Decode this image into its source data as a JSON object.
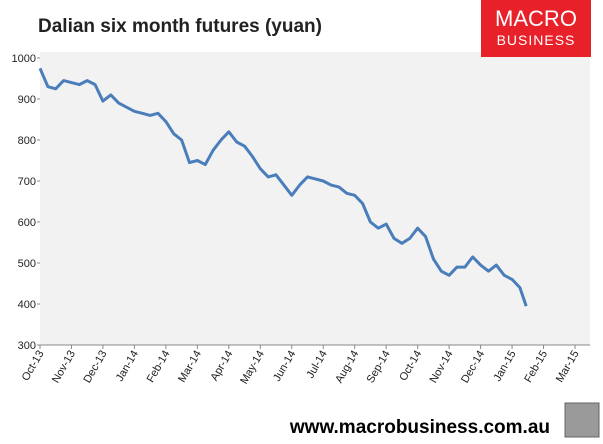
{
  "chart_data": {
    "type": "line",
    "title": "Dalian six month futures (yuan)",
    "logo": {
      "line1": "MACRO",
      "line2": "BUSINESS"
    },
    "footer": "www.macrobusiness.com.au",
    "x": [
      0,
      0.25,
      0.5,
      0.75,
      1,
      1.25,
      1.5,
      1.75,
      2,
      2.25,
      2.5,
      2.75,
      3,
      3.25,
      3.5,
      3.75,
      4,
      4.25,
      4.5,
      4.75,
      5,
      5.25,
      5.5,
      5.75,
      6,
      6.25,
      6.5,
      6.75,
      7,
      7.25,
      7.5,
      7.75,
      8,
      8.25,
      8.5,
      8.75,
      9,
      9.25,
      9.5,
      9.75,
      10,
      10.25,
      10.5,
      10.75,
      11,
      11.25,
      11.5,
      11.75,
      12,
      12.25,
      12.5,
      12.75,
      13,
      13.25,
      13.5,
      13.75,
      14,
      14.25,
      14.5,
      14.75,
      15,
      15.25,
      15.45
    ],
    "series": [
      {
        "name": "Dalian six month futures",
        "color": "#4a7ebb",
        "values": [
          975,
          930,
          925,
          945,
          940,
          935,
          945,
          935,
          895,
          910,
          890,
          880,
          870,
          865,
          860,
          865,
          845,
          815,
          800,
          745,
          750,
          740,
          775,
          800,
          820,
          795,
          785,
          760,
          730,
          710,
          715,
          690,
          665,
          690,
          710,
          705,
          700,
          690,
          685,
          670,
          665,
          645,
          600,
          585,
          595,
          560,
          548,
          560,
          585,
          565,
          510,
          480,
          470,
          490,
          490,
          515,
          495,
          480,
          495,
          470,
          460,
          440,
          395
        ]
      }
    ],
    "xlim": [
      0,
      17
    ],
    "xticks": [
      {
        "value": 0,
        "label": "Oct-13"
      },
      {
        "value": 1,
        "label": "Nov-13"
      },
      {
        "value": 2,
        "label": "Dec-13"
      },
      {
        "value": 3,
        "label": "Jan-14"
      },
      {
        "value": 4,
        "label": "Feb-14"
      },
      {
        "value": 5,
        "label": "Mar-14"
      },
      {
        "value": 6,
        "label": "Apr-14"
      },
      {
        "value": 7,
        "label": "May-14"
      },
      {
        "value": 8,
        "label": "Jun-14"
      },
      {
        "value": 9,
        "label": "Jul-14"
      },
      {
        "value": 10,
        "label": "Aug-14"
      },
      {
        "value": 11,
        "label": "Sep-14"
      },
      {
        "value": 12,
        "label": "Oct-14"
      },
      {
        "value": 13,
        "label": "Nov-14"
      },
      {
        "value": 14,
        "label": "Dec-14"
      },
      {
        "value": 15,
        "label": "Jan-15"
      },
      {
        "value": 16,
        "label": "Feb-15"
      },
      {
        "value": 17,
        "label": "Mar-15"
      }
    ],
    "ylim": [
      300,
      1000
    ],
    "yticks": [
      300,
      400,
      500,
      600,
      700,
      800,
      900,
      1000
    ]
  }
}
